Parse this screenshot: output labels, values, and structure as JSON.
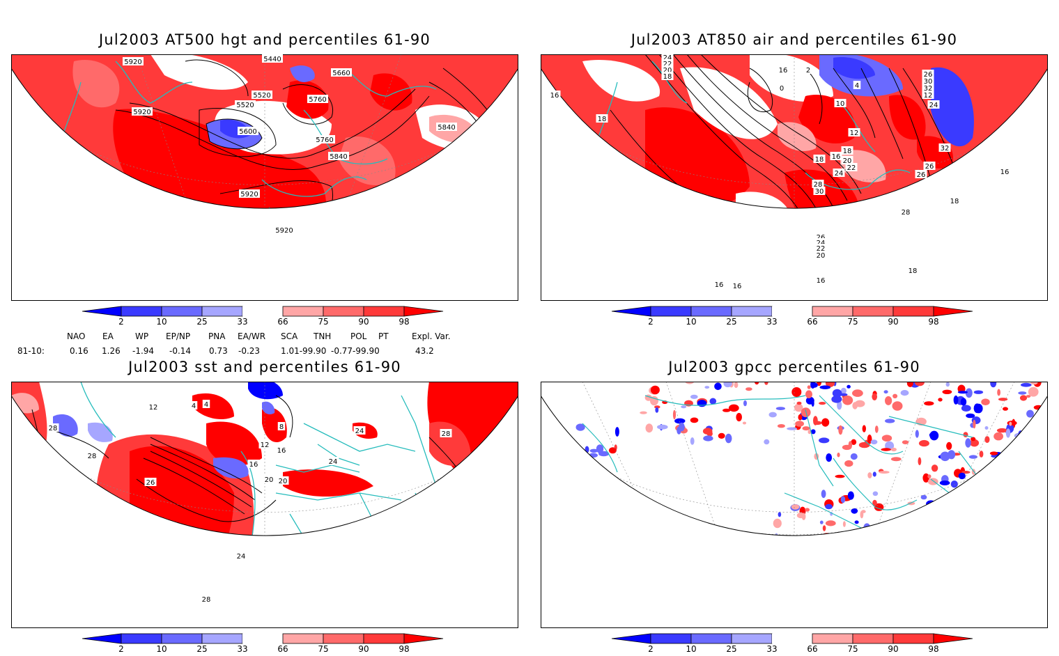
{
  "panels": [
    {
      "id": "at500",
      "title": "Jul2003 AT500 hgt and percentiles 61-90",
      "contour_labels": [
        "5920",
        "5440",
        "5660",
        "5520",
        "5520",
        "5760",
        "5920",
        "5600",
        "5760",
        "5840",
        "5840",
        "5920",
        "5920"
      ]
    },
    {
      "id": "at850",
      "title": "Jul2003 AT850 air and percentiles 61-90",
      "contour_labels": [
        "24",
        "22",
        "20",
        "18",
        "16",
        "18",
        "16",
        "2",
        "0",
        "4",
        "10",
        "12",
        "12",
        "32",
        "30",
        "26",
        "24",
        "18",
        "16",
        "18",
        "20",
        "22",
        "24",
        "28",
        "30",
        "26",
        "26",
        "28",
        "32",
        "16",
        "18",
        "26",
        "24",
        "22",
        "20",
        "18",
        "16",
        "16",
        "16"
      ]
    },
    {
      "id": "sst",
      "title": "Jul2003 sst and percentiles 61-90",
      "contour_labels": [
        "12",
        "4",
        "4",
        "8",
        "12",
        "16",
        "16",
        "20",
        "20",
        "24",
        "28",
        "24",
        "28",
        "28",
        "26",
        "24",
        "28"
      ]
    },
    {
      "id": "gpcc",
      "title": "Jul2003 gpcc percentiles 61-90",
      "contour_labels": []
    }
  ],
  "colorbar": {
    "ticks": [
      "2",
      "10",
      "25",
      "33",
      "66",
      "75",
      "90",
      "98"
    ],
    "colors": [
      "#0000ff",
      "#3a3aff",
      "#6a6aff",
      "#a6a6ff",
      "#ffffff",
      "#ffa6a6",
      "#ff6a6a",
      "#ff3a3a",
      "#ff0000"
    ]
  },
  "indices": {
    "headers": [
      "NAO",
      "EA",
      "WP",
      "EP/NP",
      "PNA",
      "EA/WR",
      "SCA",
      "TNH",
      "POL",
      "PT",
      "Expl. Var."
    ],
    "row_label": "81-10:",
    "values": [
      "0.16",
      "1.26",
      "-1.94",
      "-0.14",
      "0.73",
      "-0.23",
      "1.01-99.90",
      "-0.77-99.90",
      "43.2"
    ]
  },
  "colors": {
    "coast": "#26bcbc",
    "red_strong": "#ff0000",
    "red_mid": "#ff3a3a",
    "red_light": "#ff6a6a",
    "red_pale": "#ffa6a6",
    "blue_pale": "#a6a6ff",
    "blue_mid": "#6a6aff",
    "blue_strong": "#3a3aff"
  }
}
